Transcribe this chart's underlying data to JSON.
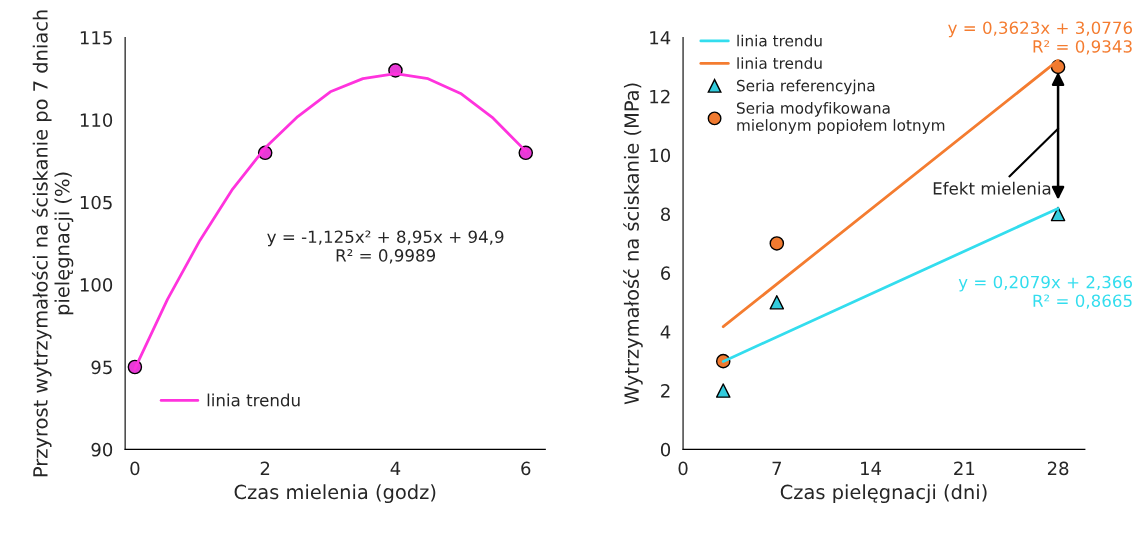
{
  "chart_data": [
    {
      "type": "scatter",
      "xlabel": "Czas mielenia (godz)",
      "ylabel": "Przyrost wytrzymałości na ściskanie po 7 dniach pielęgnacji (%)",
      "xlim": [
        -0.15,
        6.3
      ],
      "xticks": [
        0,
        2,
        4,
        6
      ],
      "ylim": [
        90,
        115
      ],
      "yticks": [
        90,
        95,
        100,
        105,
        110,
        115
      ],
      "grid": false,
      "legend": "bottom left",
      "series": [
        {
          "marker": "circle",
          "color": "#e83ad6",
          "x": [
            0,
            2,
            4,
            6
          ],
          "values": [
            95,
            108,
            113,
            108
          ]
        },
        {
          "type": "line",
          "name": "linia trendu",
          "color": "#ff33dd",
          "x": [
            0,
            0.5,
            1,
            1.5,
            2,
            2.5,
            3,
            3.5,
            4,
            4.5,
            5,
            5.5,
            6
          ],
          "values": [
            94.9,
            99.1,
            102.7,
            105.8,
            108.3,
            110.2,
            111.7,
            112.5,
            112.8,
            112.5,
            111.6,
            110.1,
            108.1
          ]
        }
      ],
      "annotations": [
        "y = -1,125x² + 8,95x + 94,9\nR² = 0,9989"
      ]
    },
    {
      "type": "scatter",
      "xlabel": "Czas pielęgnacji (dni)",
      "ylabel": "Wytrzymałość na ściskanie (MPa)",
      "xlim": [
        0,
        30
      ],
      "xticks": [
        0,
        7,
        14,
        21,
        28
      ],
      "ylim": [
        0,
        14
      ],
      "yticks": [
        0,
        2,
        4,
        6,
        8,
        10,
        12,
        14
      ],
      "grid": false,
      "legend": "top left",
      "series": [
        {
          "type": "line",
          "name": "linia trendu",
          "color": "#33ddee",
          "x": [
            3,
            28
          ],
          "values": [
            2.99,
            8.19
          ]
        },
        {
          "type": "line",
          "name": "linia trendu",
          "color": "#f47c30",
          "x": [
            3,
            28
          ],
          "values": [
            4.17,
            13.22
          ]
        },
        {
          "name": "Seria referencyjna",
          "marker": "triangle",
          "color": "#33ccdd",
          "x": [
            3,
            7,
            28
          ],
          "values": [
            2,
            5,
            8
          ]
        },
        {
          "name": "Seria modyfikowana\nmielonym popiołem lotnym",
          "marker": "circle",
          "color": "#f07a30",
          "x": [
            3,
            7,
            28
          ],
          "values": [
            3,
            7,
            13
          ]
        }
      ],
      "annotations": [
        "y = 0,2079x + 2,366\nR² = 0,8665",
        "y = 0,3623x + 3,0776\nR² = 0,9343",
        "Efekt mielenia"
      ]
    }
  ]
}
